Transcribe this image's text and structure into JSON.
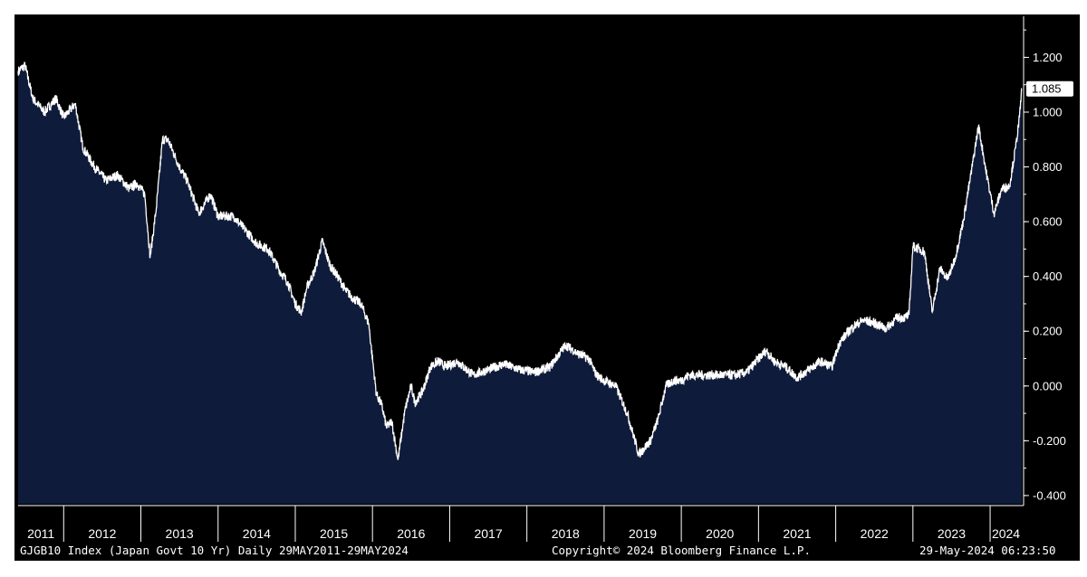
{
  "chart_data": {
    "type": "area",
    "y_ticks": [
      1.2,
      1.0,
      0.8,
      0.6,
      0.4,
      0.2,
      0.0,
      -0.2,
      -0.4
    ],
    "y_tick_labels": [
      "1.200",
      "1.000",
      "0.800",
      "0.600",
      "0.400",
      "0.200",
      "0.000",
      "-0.200",
      "-0.400"
    ],
    "ylim": [
      -0.43,
      1.35
    ],
    "x_labels": [
      "2011",
      "2012",
      "2013",
      "2014",
      "2015",
      "2016",
      "2017",
      "2018",
      "2019",
      "2020",
      "2021",
      "2022",
      "2023",
      "2024"
    ],
    "xlim": [
      2011.41,
      2024.41
    ],
    "last_value_label": "1.085",
    "last_value": 1.085,
    "series": [
      {
        "x": [
          2011.41,
          2011.5,
          2011.6,
          2011.75,
          2011.9,
          2012.0,
          2012.15,
          2012.25,
          2012.4,
          2012.55,
          2012.7,
          2012.85,
          2012.95,
          2013.05,
          2013.12,
          2013.2,
          2013.28,
          2013.35,
          2013.5,
          2013.6,
          2013.75,
          2013.9,
          2014.0,
          2014.2,
          2014.35,
          2014.5,
          2014.65,
          2014.8,
          2014.9,
          2015.0,
          2015.08,
          2015.15,
          2015.25,
          2015.35,
          2015.45,
          2015.55,
          2015.65,
          2015.75,
          2015.85,
          2015.95,
          2016.05,
          2016.12,
          2016.18,
          2016.25,
          2016.33,
          2016.42,
          2016.5,
          2016.55,
          2016.65,
          2016.75,
          2016.85,
          2016.95,
          2017.1,
          2017.3,
          2017.5,
          2017.7,
          2017.9,
          2018.1,
          2018.3,
          2018.5,
          2018.65,
          2018.8,
          2018.9,
          2019.0,
          2019.15,
          2019.3,
          2019.45,
          2019.6,
          2019.7,
          2019.8,
          2019.9,
          2020.0,
          2020.1,
          2020.3,
          2020.5,
          2020.7,
          2020.85,
          2021.0,
          2021.1,
          2021.2,
          2021.35,
          2021.5,
          2021.65,
          2021.8,
          2021.95,
          2022.05,
          2022.2,
          2022.35,
          2022.5,
          2022.65,
          2022.8,
          2022.9,
          2022.95,
          2023.0,
          2023.08,
          2023.15,
          2023.25,
          2023.35,
          2023.45,
          2023.55,
          2023.65,
          2023.75,
          2023.85,
          2023.95,
          2024.05,
          2024.15,
          2024.25,
          2024.33,
          2024.38,
          2024.41
        ],
        "y": [
          1.15,
          1.17,
          1.05,
          1.0,
          1.05,
          0.98,
          1.03,
          0.87,
          0.8,
          0.75,
          0.77,
          0.72,
          0.74,
          0.7,
          0.47,
          0.65,
          0.9,
          0.9,
          0.8,
          0.75,
          0.63,
          0.7,
          0.62,
          0.62,
          0.57,
          0.52,
          0.5,
          0.42,
          0.38,
          0.3,
          0.27,
          0.36,
          0.42,
          0.53,
          0.44,
          0.4,
          0.35,
          0.32,
          0.3,
          0.23,
          -0.03,
          -0.07,
          -0.15,
          -0.13,
          -0.27,
          -0.09,
          0.0,
          -0.06,
          -0.02,
          0.07,
          0.09,
          0.07,
          0.09,
          0.04,
          0.06,
          0.08,
          0.06,
          0.05,
          0.07,
          0.15,
          0.12,
          0.1,
          0.04,
          0.02,
          0.0,
          -0.1,
          -0.25,
          -0.2,
          -0.12,
          0.0,
          0.02,
          0.02,
          0.04,
          0.04,
          0.04,
          0.04,
          0.05,
          0.1,
          0.13,
          0.09,
          0.07,
          0.03,
          0.06,
          0.09,
          0.07,
          0.16,
          0.21,
          0.24,
          0.23,
          0.21,
          0.25,
          0.25,
          0.26,
          0.51,
          0.5,
          0.49,
          0.27,
          0.43,
          0.39,
          0.47,
          0.6,
          0.77,
          0.95,
          0.78,
          0.63,
          0.72,
          0.73,
          0.87,
          0.98,
          1.085
        ]
      }
    ]
  },
  "footer": {
    "left": "GJGB10 Index (Japan Govt 10 Yr)  Daily 29MAY2011-29MAY2024",
    "center": "Copyright© 2024 Bloomberg Finance L.P.",
    "right": "29-May-2024 06:23:50"
  },
  "colors": {
    "background": "#000000",
    "area_fill": "#0e1b3a",
    "line": "#ffffff",
    "axis": "#ffffff"
  }
}
